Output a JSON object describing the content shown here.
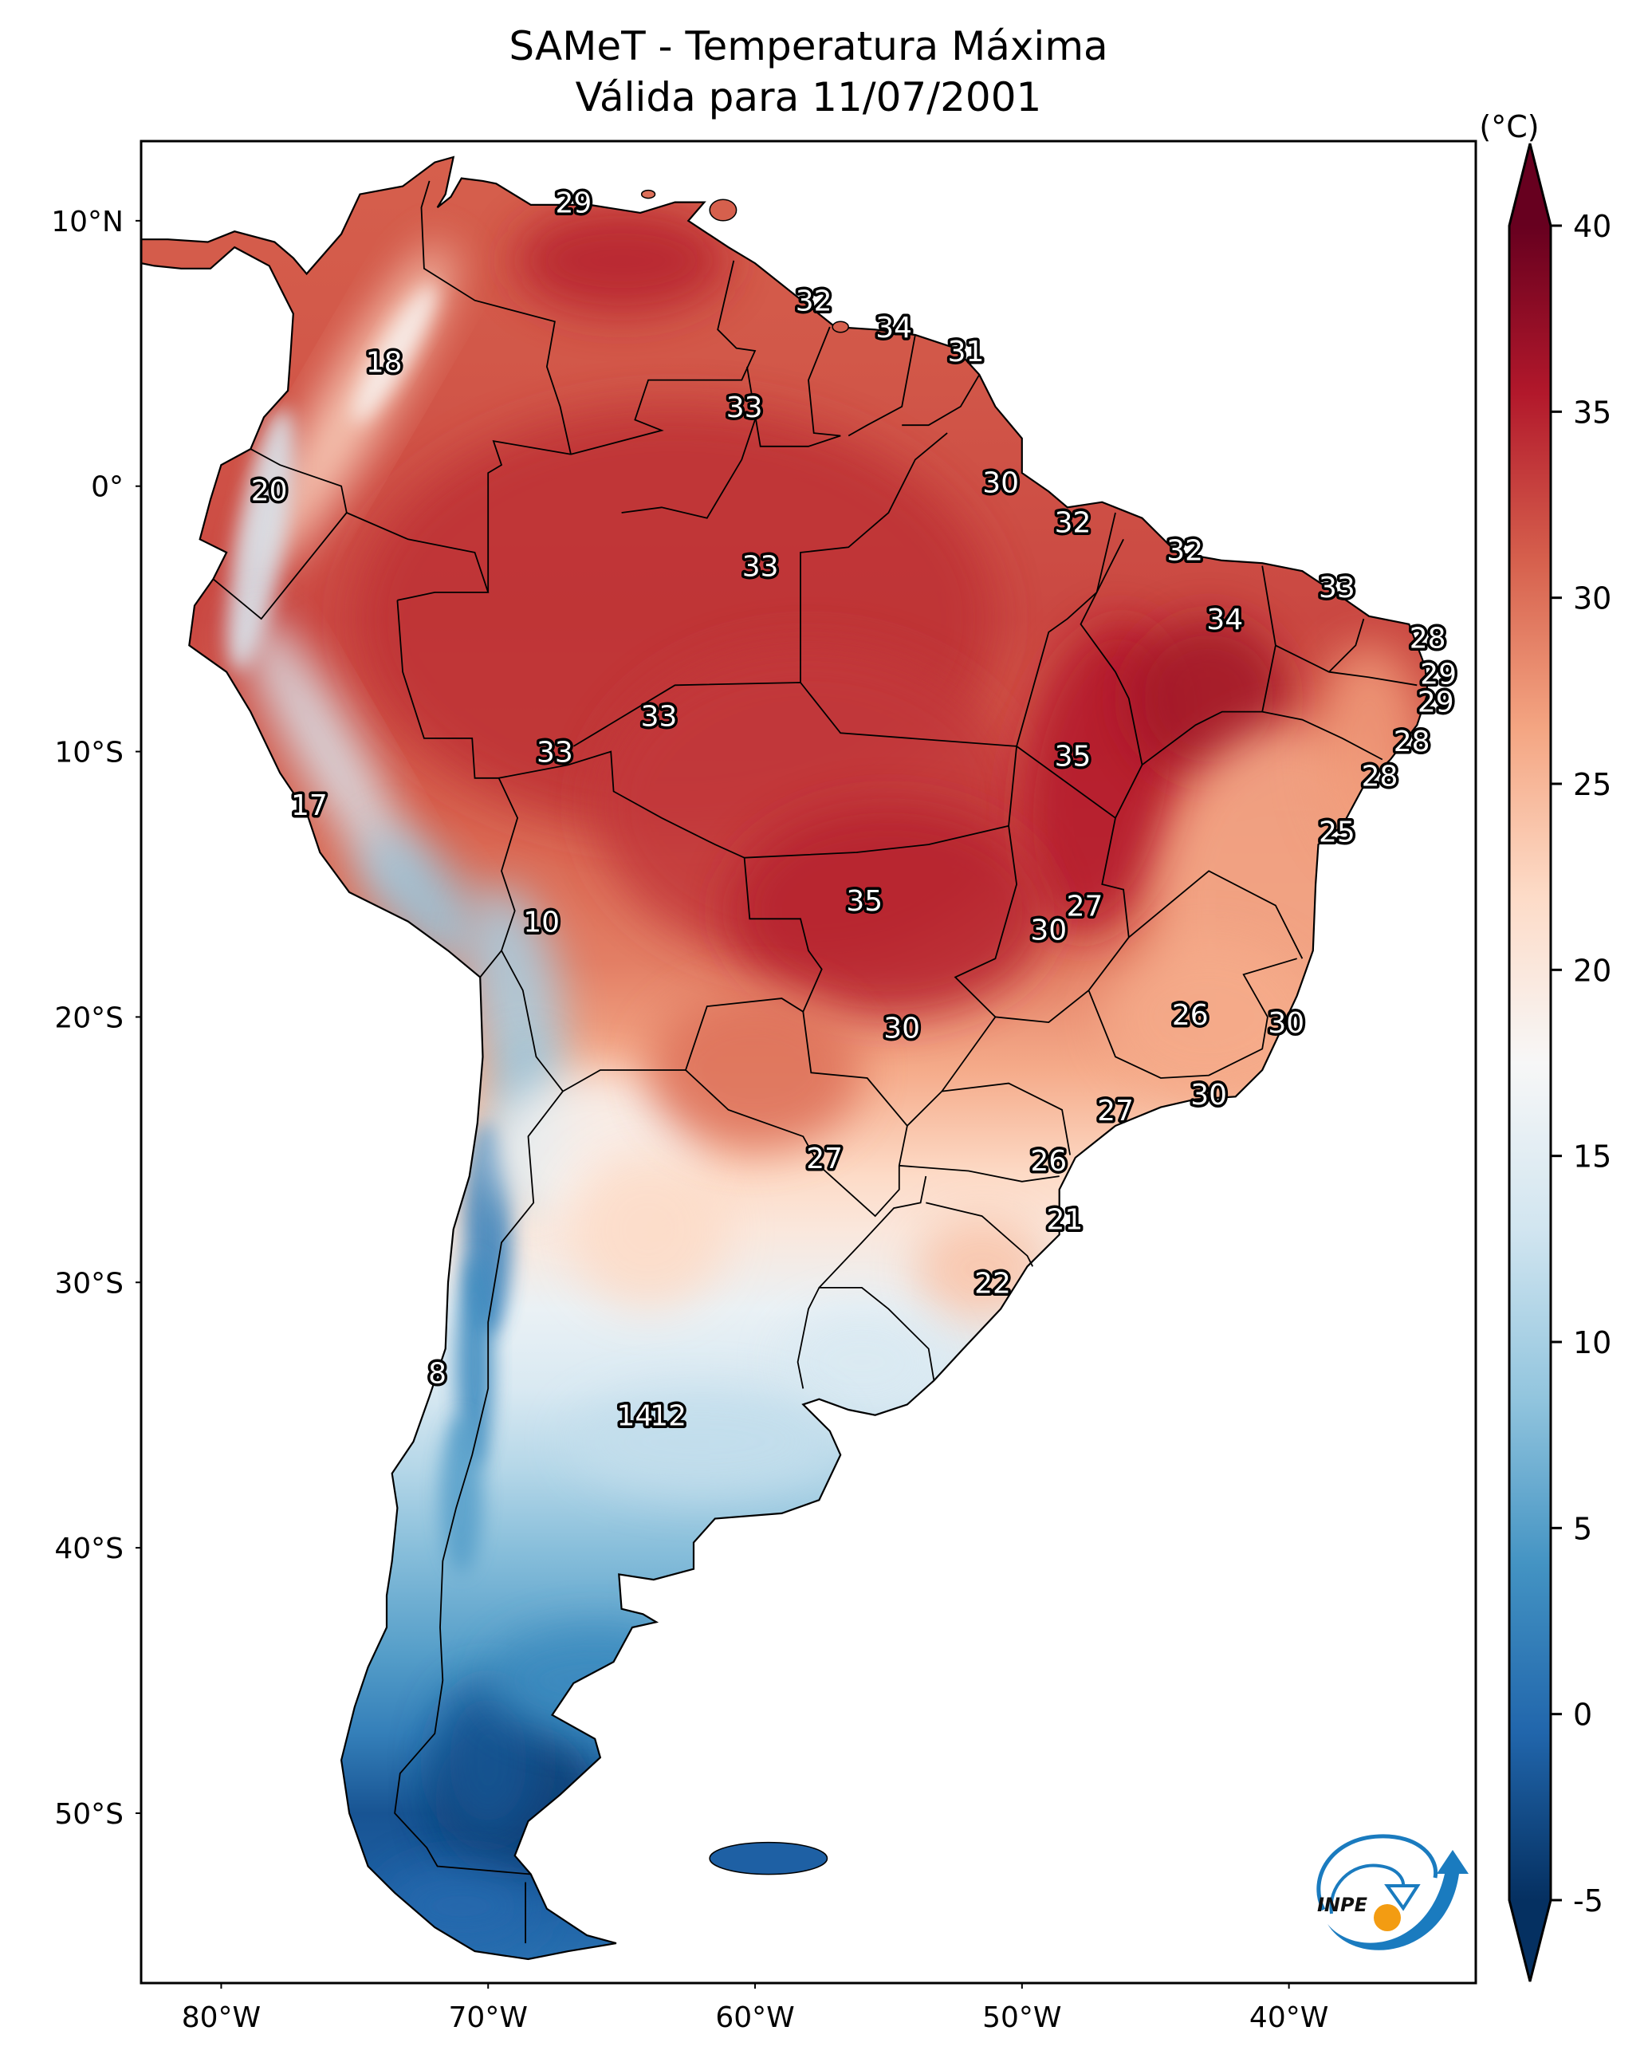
{
  "title": {
    "line1": "SAMeT - Temperatura Máxima",
    "line2": "Válida para 11/07/2001"
  },
  "colorbar": {
    "unit_label": "(°C)",
    "min": -5,
    "max": 40,
    "ticks": [
      -5,
      0,
      5,
      10,
      15,
      20,
      25,
      30,
      35,
      40
    ],
    "tick_labels": [
      "-5",
      "0",
      "5",
      "10",
      "15",
      "20",
      "25",
      "30",
      "35",
      "40"
    ],
    "extend": "both",
    "colormap": "RdBu_r",
    "colors": [
      "#053061",
      "#2166ac",
      "#4393c3",
      "#92c5de",
      "#d1e5f0",
      "#f7f7f7",
      "#fddbc7",
      "#f4a582",
      "#d6604d",
      "#b2182b",
      "#67001f"
    ]
  },
  "axes": {
    "lon_ticks": [
      -80,
      -70,
      -60,
      -50,
      -40
    ],
    "lon_labels": [
      "80°W",
      "70°W",
      "60°W",
      "50°W",
      "40°W"
    ],
    "lat_ticks": [
      10,
      0,
      -10,
      -20,
      -30,
      -40,
      -50
    ],
    "lat_labels": [
      "10°N",
      "0°",
      "10°S",
      "20°S",
      "30°S",
      "40°S",
      "50°S"
    ],
    "lon_range": [
      -83.0,
      -33.0
    ],
    "lat_range": [
      -56.4,
      13.0
    ]
  },
  "logo": {
    "text": "INPE",
    "blue": "#1a7bbf",
    "orange": "#f39c12"
  },
  "chart_data": {
    "type": "heatmap",
    "title": "SAMeT - Temperatura Máxima — Válida para 11/07/2001",
    "variable": "Maximum temperature",
    "unit": "°C",
    "region": "South America",
    "xlabel": "",
    "ylabel": "",
    "value_range": [
      -5,
      40
    ],
    "grid": false,
    "legend": "right (colorbar)",
    "annotations": [
      {
        "value": 29,
        "lon": -66.8,
        "lat": 10.7
      },
      {
        "value": 32,
        "lon": -57.8,
        "lat": 7.0
      },
      {
        "value": 34,
        "lon": -54.8,
        "lat": 6.0
      },
      {
        "value": 31,
        "lon": -52.1,
        "lat": 5.1
      },
      {
        "value": 18,
        "lon": -73.9,
        "lat": 4.7
      },
      {
        "value": 33,
        "lon": -60.4,
        "lat": 3.0
      },
      {
        "value": 20,
        "lon": -78.2,
        "lat": -0.15
      },
      {
        "value": 30,
        "lon": -50.8,
        "lat": 0.15
      },
      {
        "value": 32,
        "lon": -48.1,
        "lat": -1.35
      },
      {
        "value": 32,
        "lon": -43.9,
        "lat": -2.4
      },
      {
        "value": 33,
        "lon": -38.2,
        "lat": -3.8
      },
      {
        "value": 34,
        "lon": -42.4,
        "lat": -5.0
      },
      {
        "value": 33,
        "lon": -59.8,
        "lat": -3.0
      },
      {
        "value": 28,
        "lon": -34.8,
        "lat": -5.7
      },
      {
        "value": 29,
        "lon": -34.4,
        "lat": -7.05
      },
      {
        "value": 29,
        "lon": -34.5,
        "lat": -8.1
      },
      {
        "value": 28,
        "lon": -35.4,
        "lat": -9.6
      },
      {
        "value": 28,
        "lon": -36.6,
        "lat": -10.9
      },
      {
        "value": 25,
        "lon": -38.2,
        "lat": -13.0
      },
      {
        "value": 33,
        "lon": -63.6,
        "lat": -8.65
      },
      {
        "value": 33,
        "lon": -67.5,
        "lat": -10.0
      },
      {
        "value": 35,
        "lon": -48.1,
        "lat": -10.15
      },
      {
        "value": 17,
        "lon": -76.7,
        "lat": -12.0
      },
      {
        "value": 35,
        "lon": -55.9,
        "lat": -15.6
      },
      {
        "value": 27,
        "lon": -47.65,
        "lat": -15.8
      },
      {
        "value": 30,
        "lon": -49.0,
        "lat": -16.7
      },
      {
        "value": 10,
        "lon": -68.0,
        "lat": -16.4
      },
      {
        "value": 26,
        "lon": -43.7,
        "lat": -19.9
      },
      {
        "value": 30,
        "lon": -40.1,
        "lat": -20.2
      },
      {
        "value": 30,
        "lon": -54.5,
        "lat": -20.4
      },
      {
        "value": 30,
        "lon": -43.0,
        "lat": -22.9
      },
      {
        "value": 27,
        "lon": -46.5,
        "lat": -23.5
      },
      {
        "value": 26,
        "lon": -49.0,
        "lat": -25.4
      },
      {
        "value": 27,
        "lon": -57.4,
        "lat": -25.3
      },
      {
        "value": 21,
        "lon": -48.4,
        "lat": -27.6
      },
      {
        "value": 22,
        "lon": -51.1,
        "lat": -30.0
      },
      {
        "value": 8,
        "lon": -71.9,
        "lat": -33.4
      },
      {
        "value": 14,
        "lon": -64.5,
        "lat": -35.0
      },
      {
        "value": 12,
        "lon": -63.25,
        "lat": -35.0
      }
    ]
  }
}
